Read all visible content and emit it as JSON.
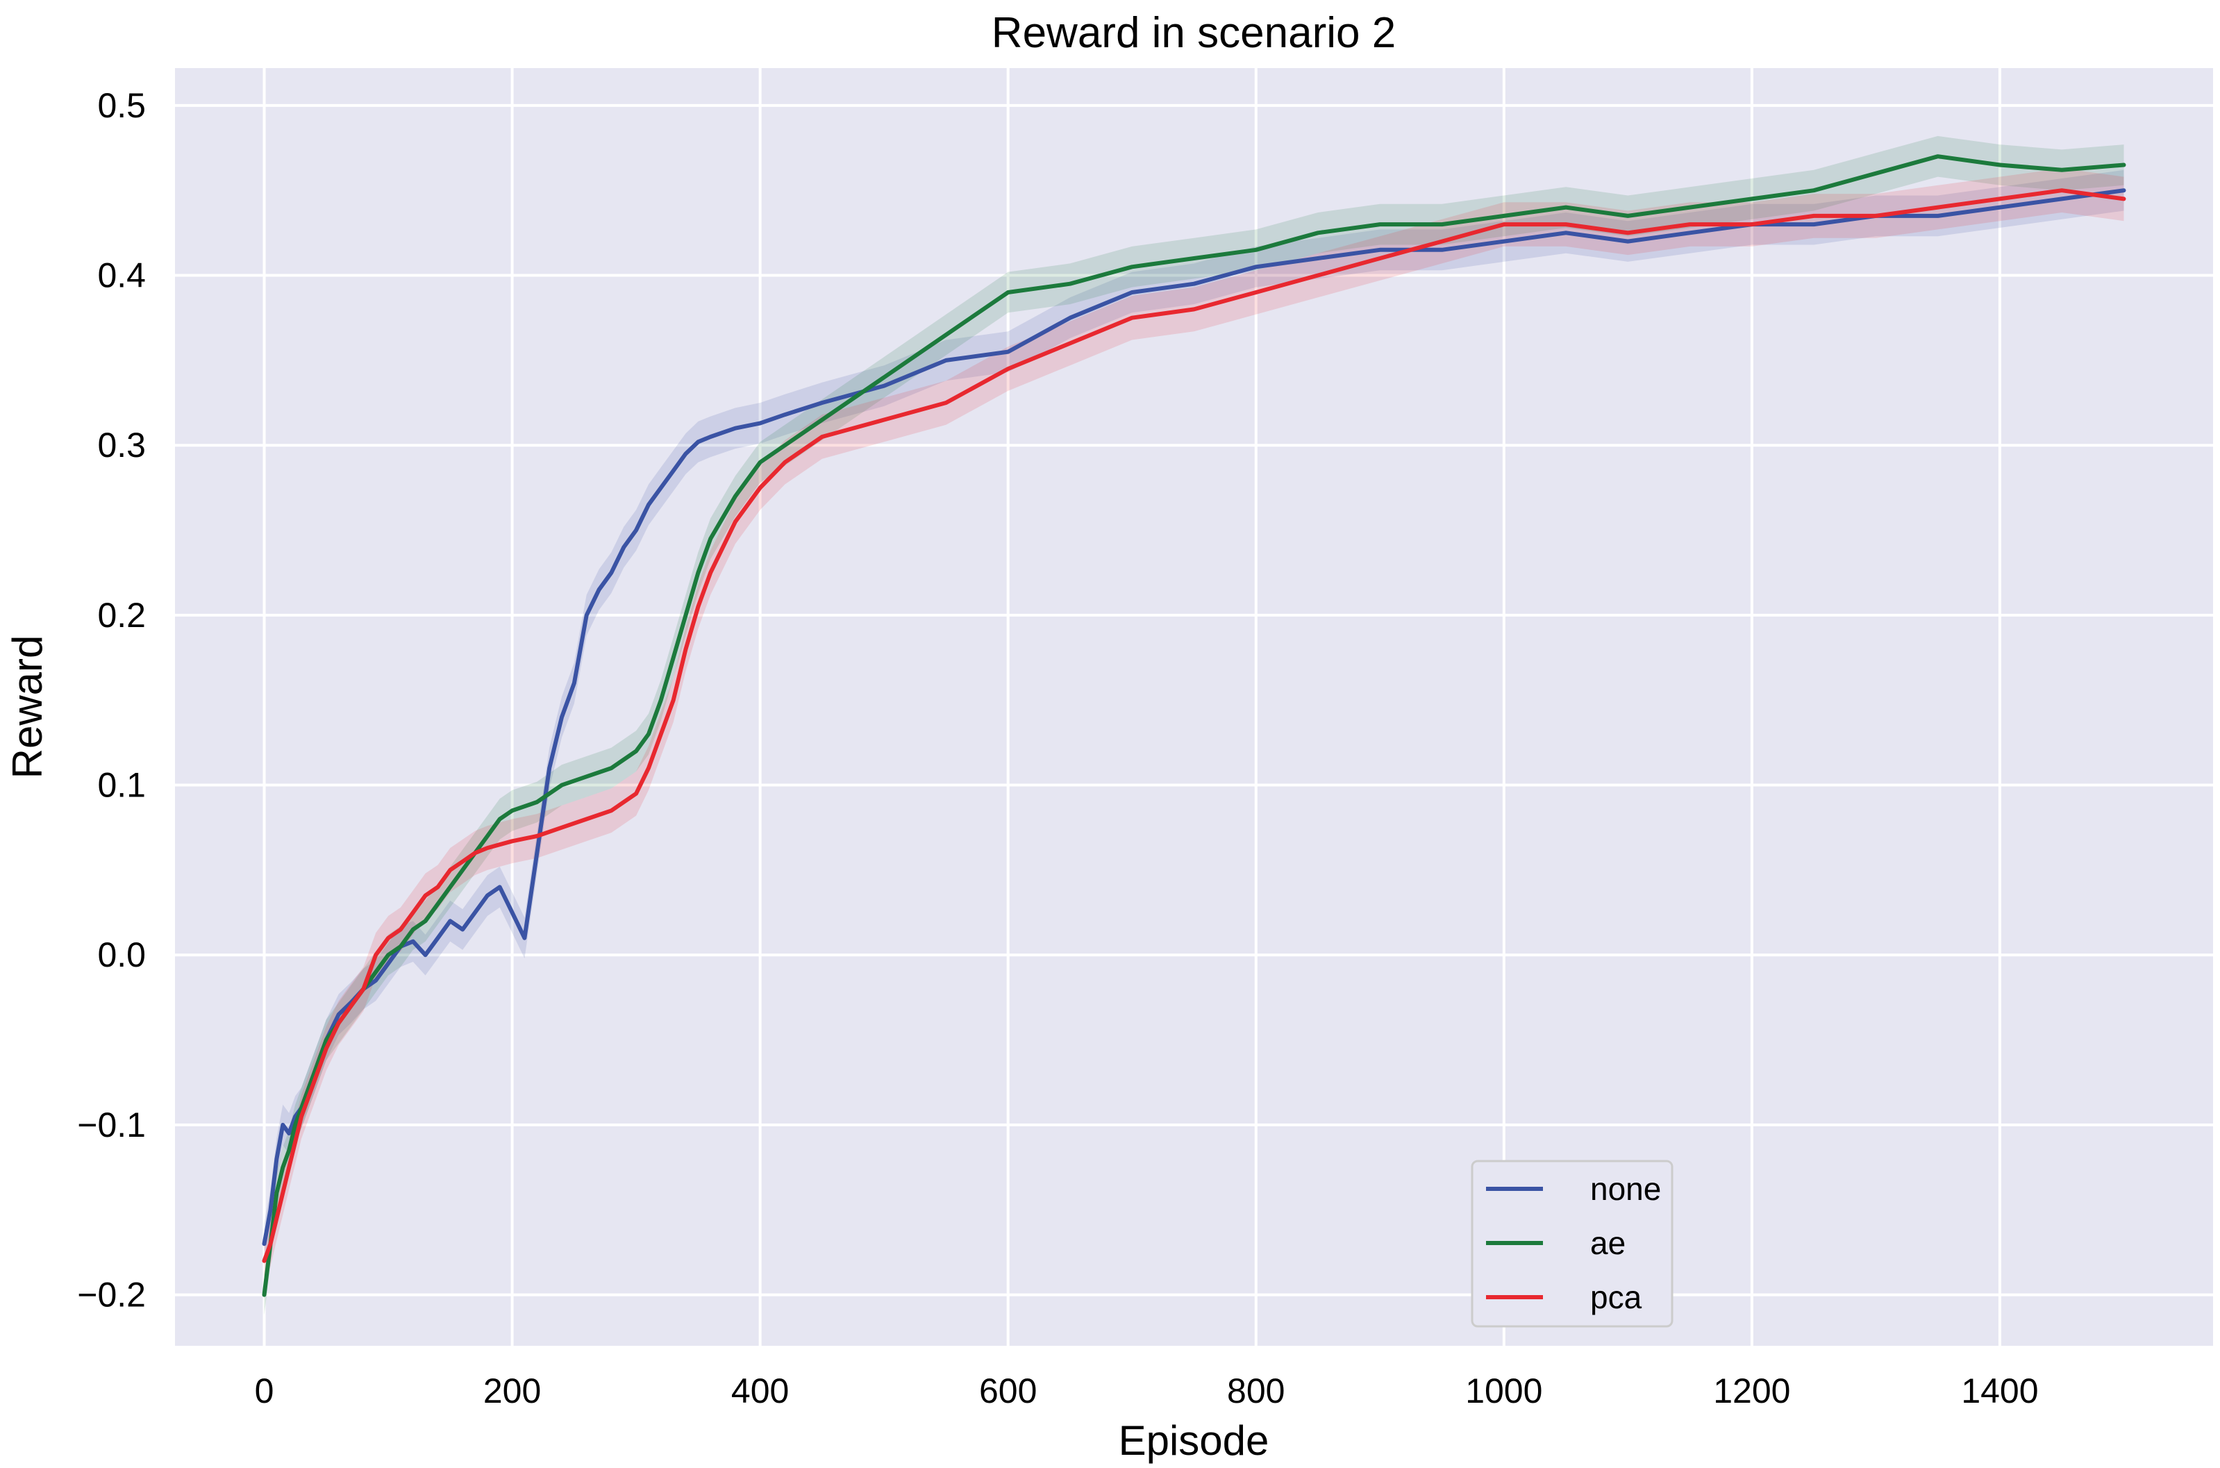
{
  "chart_data": {
    "type": "line",
    "title": "Reward in scenario 2",
    "xlabel": "Episode",
    "ylabel": "Reward",
    "xlim": [
      -72,
      1572
    ],
    "ylim": [
      -0.23,
      0.522
    ],
    "xticks": [
      0,
      200,
      400,
      600,
      800,
      1000,
      1200,
      1400
    ],
    "xtick_labels": [
      "0",
      "200",
      "400",
      "600",
      "800",
      "1000",
      "1200",
      "1400"
    ],
    "yticks": [
      -0.2,
      -0.1,
      0.0,
      0.1,
      0.2,
      0.3,
      0.4,
      0.5
    ],
    "ytick_labels": [
      "−0.2",
      "−0.1",
      "0.0",
      "0.1",
      "0.2",
      "0.3",
      "0.4",
      "0.5"
    ],
    "grid": true,
    "legend_position": "lower-right",
    "background": "#e6e6f2",
    "grid_color": "#ffffff",
    "series": [
      {
        "name": "none",
        "color": "#3a53a4",
        "band_half_width": 0.012,
        "x": [
          0,
          5,
          10,
          15,
          20,
          25,
          30,
          40,
          50,
          60,
          70,
          80,
          90,
          100,
          110,
          120,
          130,
          140,
          150,
          160,
          170,
          180,
          190,
          200,
          210,
          220,
          230,
          240,
          250,
          260,
          270,
          280,
          290,
          300,
          310,
          320,
          330,
          340,
          350,
          360,
          380,
          400,
          420,
          450,
          500,
          550,
          600,
          650,
          700,
          750,
          800,
          850,
          900,
          950,
          1000,
          1050,
          1100,
          1150,
          1200,
          1250,
          1300,
          1350,
          1400,
          1450,
          1500
        ],
        "y": [
          -0.17,
          -0.15,
          -0.12,
          -0.1,
          -0.105,
          -0.095,
          -0.09,
          -0.07,
          -0.05,
          -0.035,
          -0.028,
          -0.02,
          -0.015,
          -0.005,
          0.005,
          0.008,
          0.0,
          0.01,
          0.02,
          0.015,
          0.025,
          0.035,
          0.04,
          0.025,
          0.01,
          0.06,
          0.11,
          0.14,
          0.16,
          0.2,
          0.215,
          0.225,
          0.24,
          0.25,
          0.265,
          0.275,
          0.285,
          0.295,
          0.302,
          0.305,
          0.31,
          0.313,
          0.318,
          0.325,
          0.335,
          0.35,
          0.355,
          0.375,
          0.39,
          0.395,
          0.405,
          0.41,
          0.415,
          0.415,
          0.42,
          0.425,
          0.42,
          0.425,
          0.43,
          0.43,
          0.435,
          0.435,
          0.44,
          0.445,
          0.45
        ]
      },
      {
        "name": "ae",
        "color": "#1c7a3c",
        "band_half_width": 0.012,
        "x": [
          0,
          5,
          10,
          15,
          20,
          25,
          30,
          40,
          50,
          60,
          70,
          80,
          90,
          100,
          110,
          120,
          130,
          140,
          150,
          160,
          170,
          180,
          190,
          200,
          220,
          240,
          260,
          280,
          300,
          310,
          320,
          330,
          340,
          350,
          360,
          380,
          400,
          420,
          450,
          500,
          550,
          600,
          650,
          700,
          750,
          800,
          850,
          900,
          950,
          1000,
          1050,
          1100,
          1150,
          1200,
          1250,
          1300,
          1350,
          1400,
          1450,
          1500
        ],
        "y": [
          -0.2,
          -0.17,
          -0.14,
          -0.125,
          -0.115,
          -0.1,
          -0.09,
          -0.07,
          -0.05,
          -0.04,
          -0.03,
          -0.02,
          -0.01,
          0.0,
          0.005,
          0.015,
          0.02,
          0.03,
          0.04,
          0.05,
          0.06,
          0.07,
          0.08,
          0.085,
          0.09,
          0.1,
          0.105,
          0.11,
          0.12,
          0.13,
          0.15,
          0.175,
          0.2,
          0.225,
          0.245,
          0.27,
          0.29,
          0.3,
          0.315,
          0.34,
          0.365,
          0.39,
          0.395,
          0.405,
          0.41,
          0.415,
          0.425,
          0.43,
          0.43,
          0.435,
          0.44,
          0.435,
          0.44,
          0.445,
          0.45,
          0.46,
          0.47,
          0.465,
          0.462,
          0.465
        ]
      },
      {
        "name": "pca",
        "color": "#e8282f",
        "band_half_width": 0.013,
        "x": [
          0,
          5,
          10,
          15,
          20,
          25,
          30,
          40,
          50,
          60,
          70,
          80,
          90,
          100,
          110,
          120,
          130,
          140,
          150,
          160,
          170,
          180,
          190,
          200,
          220,
          240,
          260,
          280,
          300,
          310,
          320,
          330,
          340,
          350,
          360,
          380,
          400,
          420,
          450,
          500,
          550,
          600,
          650,
          700,
          750,
          800,
          850,
          900,
          950,
          1000,
          1050,
          1100,
          1150,
          1200,
          1250,
          1300,
          1350,
          1400,
          1450,
          1500
        ],
        "y": [
          -0.18,
          -0.17,
          -0.155,
          -0.14,
          -0.125,
          -0.11,
          -0.095,
          -0.075,
          -0.055,
          -0.04,
          -0.03,
          -0.02,
          0.0,
          0.01,
          0.015,
          0.025,
          0.035,
          0.04,
          0.05,
          0.055,
          0.06,
          0.063,
          0.065,
          0.067,
          0.07,
          0.075,
          0.08,
          0.085,
          0.095,
          0.11,
          0.13,
          0.15,
          0.18,
          0.205,
          0.225,
          0.255,
          0.275,
          0.29,
          0.305,
          0.315,
          0.325,
          0.345,
          0.36,
          0.375,
          0.38,
          0.39,
          0.4,
          0.41,
          0.42,
          0.43,
          0.43,
          0.425,
          0.43,
          0.43,
          0.435,
          0.435,
          0.44,
          0.445,
          0.45,
          0.445
        ]
      }
    ]
  }
}
